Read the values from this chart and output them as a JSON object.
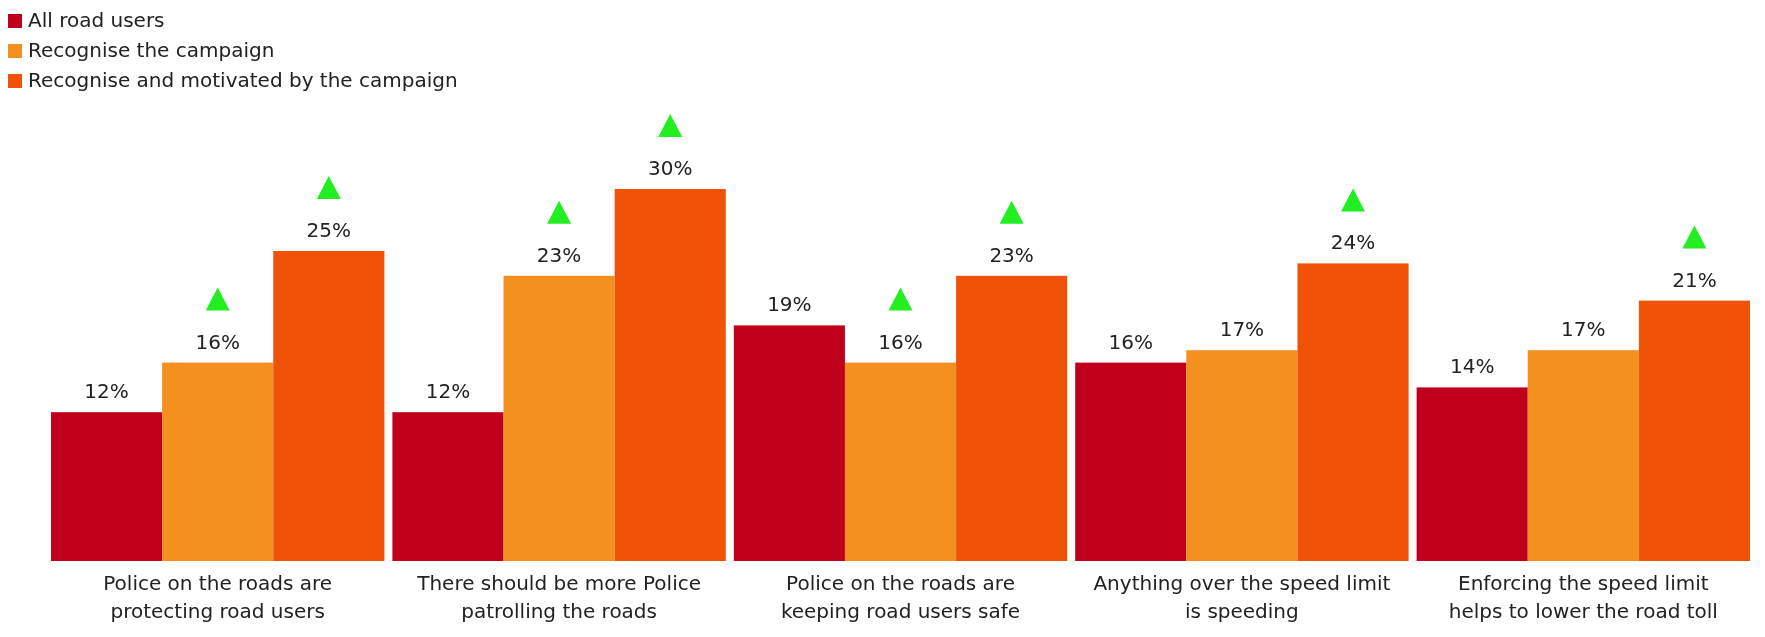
{
  "chart_data": {
    "type": "bar",
    "categories": [
      "Police on the roads are protecting road users",
      "There should be more Police patrolling the roads",
      "Police on the roads are keeping road users safe",
      "Anything over the speed limit is speeding",
      "Enforcing the speed limit helps to lower the road toll"
    ],
    "series": [
      {
        "name": "All road users",
        "color": "#c0001a",
        "values": [
          12,
          12,
          19,
          16,
          14
        ],
        "value_labels": [
          "12%",
          "12%",
          "19%",
          "16%",
          "14%"
        ]
      },
      {
        "name": "Recognise the campaign",
        "color": "#f39020",
        "values": [
          16,
          23,
          16,
          17,
          17
        ],
        "value_labels": [
          "16%",
          "23%",
          "16%",
          "17%",
          "17%"
        ]
      },
      {
        "name": "Recognise and motivated by the campaign",
        "color": "#f05308",
        "values": [
          25,
          30,
          23,
          24,
          21
        ],
        "value_labels": [
          "25%",
          "30%",
          "23%",
          "24%",
          "21%"
        ]
      }
    ],
    "legend": "top left"
  }
}
